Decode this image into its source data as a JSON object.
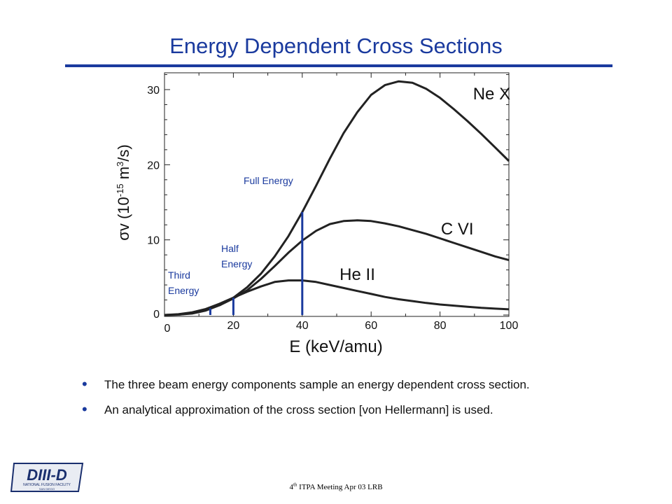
{
  "slide": {
    "title": "Energy Dependent Cross Sections",
    "bullets": [
      "The three beam energy components sample an energy dependent cross section.",
      "An analytical approximation of the cross section [von Hellermann] is used."
    ],
    "footer": "4th ITPA Meeting  Apr 03  LRB",
    "logo_text": "DIII-D",
    "logo_subtext": "NATIONAL FUSION FACILITY",
    "logo_subtext2": "SAN DIEGO"
  },
  "colors": {
    "title": "#1a3a9e",
    "curves": "#222222",
    "markers": "#1a3a9e"
  },
  "chart_data": {
    "type": "line",
    "title": "",
    "xlabel": "E (keV/amu)",
    "ylabel_prefix": "σv (10",
    "ylabel_exp": "-15",
    "ylabel_mid": " m",
    "ylabel_exp2": "3",
    "ylabel_suffix": "/s)",
    "xlim": [
      0,
      100
    ],
    "ylim": [
      0,
      32
    ],
    "xticks": [
      0,
      20,
      40,
      60,
      80,
      100
    ],
    "yticks": [
      0,
      10,
      20,
      30
    ],
    "series": [
      {
        "name": "Ne X",
        "x": [
          0,
          4,
          8,
          12,
          16,
          20,
          24,
          28,
          32,
          36,
          40,
          44,
          48,
          52,
          56,
          60,
          64,
          68,
          72,
          76,
          80,
          84,
          88,
          92,
          96,
          100
        ],
        "y": [
          0,
          0.05,
          0.2,
          0.6,
          1.3,
          2.3,
          3.7,
          5.5,
          7.8,
          10.5,
          13.7,
          17.2,
          20.8,
          24.2,
          27,
          29.3,
          30.6,
          31.1,
          30.9,
          30.1,
          28.9,
          27.4,
          25.8,
          24.1,
          22.3,
          20.5
        ]
      },
      {
        "name": "C VI",
        "x": [
          0,
          4,
          8,
          12,
          16,
          20,
          24,
          28,
          32,
          36,
          40,
          44,
          48,
          52,
          56,
          60,
          64,
          68,
          72,
          76,
          80,
          84,
          88,
          92,
          96,
          100
        ],
        "y": [
          0,
          0.05,
          0.25,
          0.7,
          1.3,
          2.2,
          3.3,
          4.8,
          6.5,
          8.3,
          9.9,
          11.2,
          12.1,
          12.5,
          12.6,
          12.5,
          12.2,
          11.8,
          11.3,
          10.8,
          10.2,
          9.6,
          9,
          8.4,
          7.8,
          7.3
        ]
      },
      {
        "name": "He II",
        "x": [
          0,
          4,
          8,
          12,
          16,
          20,
          24,
          28,
          32,
          36,
          40,
          44,
          48,
          52,
          56,
          60,
          64,
          68,
          72,
          76,
          80,
          84,
          88,
          92,
          96,
          100
        ],
        "y": [
          0,
          0.1,
          0.35,
          0.8,
          1.5,
          2.3,
          3.1,
          3.8,
          4.4,
          4.6,
          4.6,
          4.4,
          4,
          3.6,
          3.2,
          2.8,
          2.4,
          2.1,
          1.85,
          1.6,
          1.4,
          1.25,
          1.1,
          0.95,
          0.85,
          0.75
        ]
      }
    ],
    "markers": [
      {
        "label": [
          "Third",
          "Energy"
        ],
        "x": 13.3,
        "y": 0.9
      },
      {
        "label": [
          "Half",
          "Energy"
        ],
        "x": 20,
        "y": 2.3
      },
      {
        "label": [
          "Full Energy"
        ],
        "x": 40,
        "y": 13.7
      }
    ]
  }
}
